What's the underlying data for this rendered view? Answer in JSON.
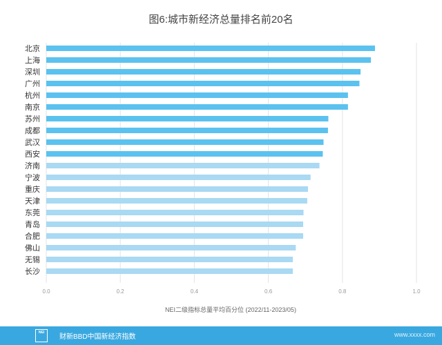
{
  "title": "图6:城市新经济总量排名前20名",
  "chart_data": {
    "type": "bar",
    "orientation": "horizontal",
    "title": "图6:城市新经济总量排名前20名",
    "categories": [
      "北京",
      "上海",
      "深圳",
      "广州",
      "杭州",
      "南京",
      "苏州",
      "成都",
      "武汉",
      "西安",
      "济南",
      "宁波",
      "重庆",
      "天津",
      "东莞",
      "青岛",
      "合肥",
      "佛山",
      "无锡",
      "长沙"
    ],
    "values": [
      0.888,
      0.877,
      0.849,
      0.846,
      0.815,
      0.815,
      0.762,
      0.761,
      0.749,
      0.747,
      0.738,
      0.714,
      0.707,
      0.705,
      0.695,
      0.694,
      0.694,
      0.674,
      0.666,
      0.666
    ],
    "xlim": [
      0,
      1.0
    ],
    "xticks": [
      "0.0",
      "0.2",
      "0.4",
      "0.6",
      "0.8",
      "1.0"
    ],
    "xlabel": "NEI二级指标总量平均百分位 (2022/11-2023/05)",
    "ylabel": "",
    "grid": true,
    "colors": {
      "dark": "#5bc2ef",
      "light": "#a9d9f3"
    }
  },
  "footer": {
    "logo_text": "NEI",
    "source": "财新BBD中国新经济指数",
    "watermark": "www.xxxx.com"
  }
}
